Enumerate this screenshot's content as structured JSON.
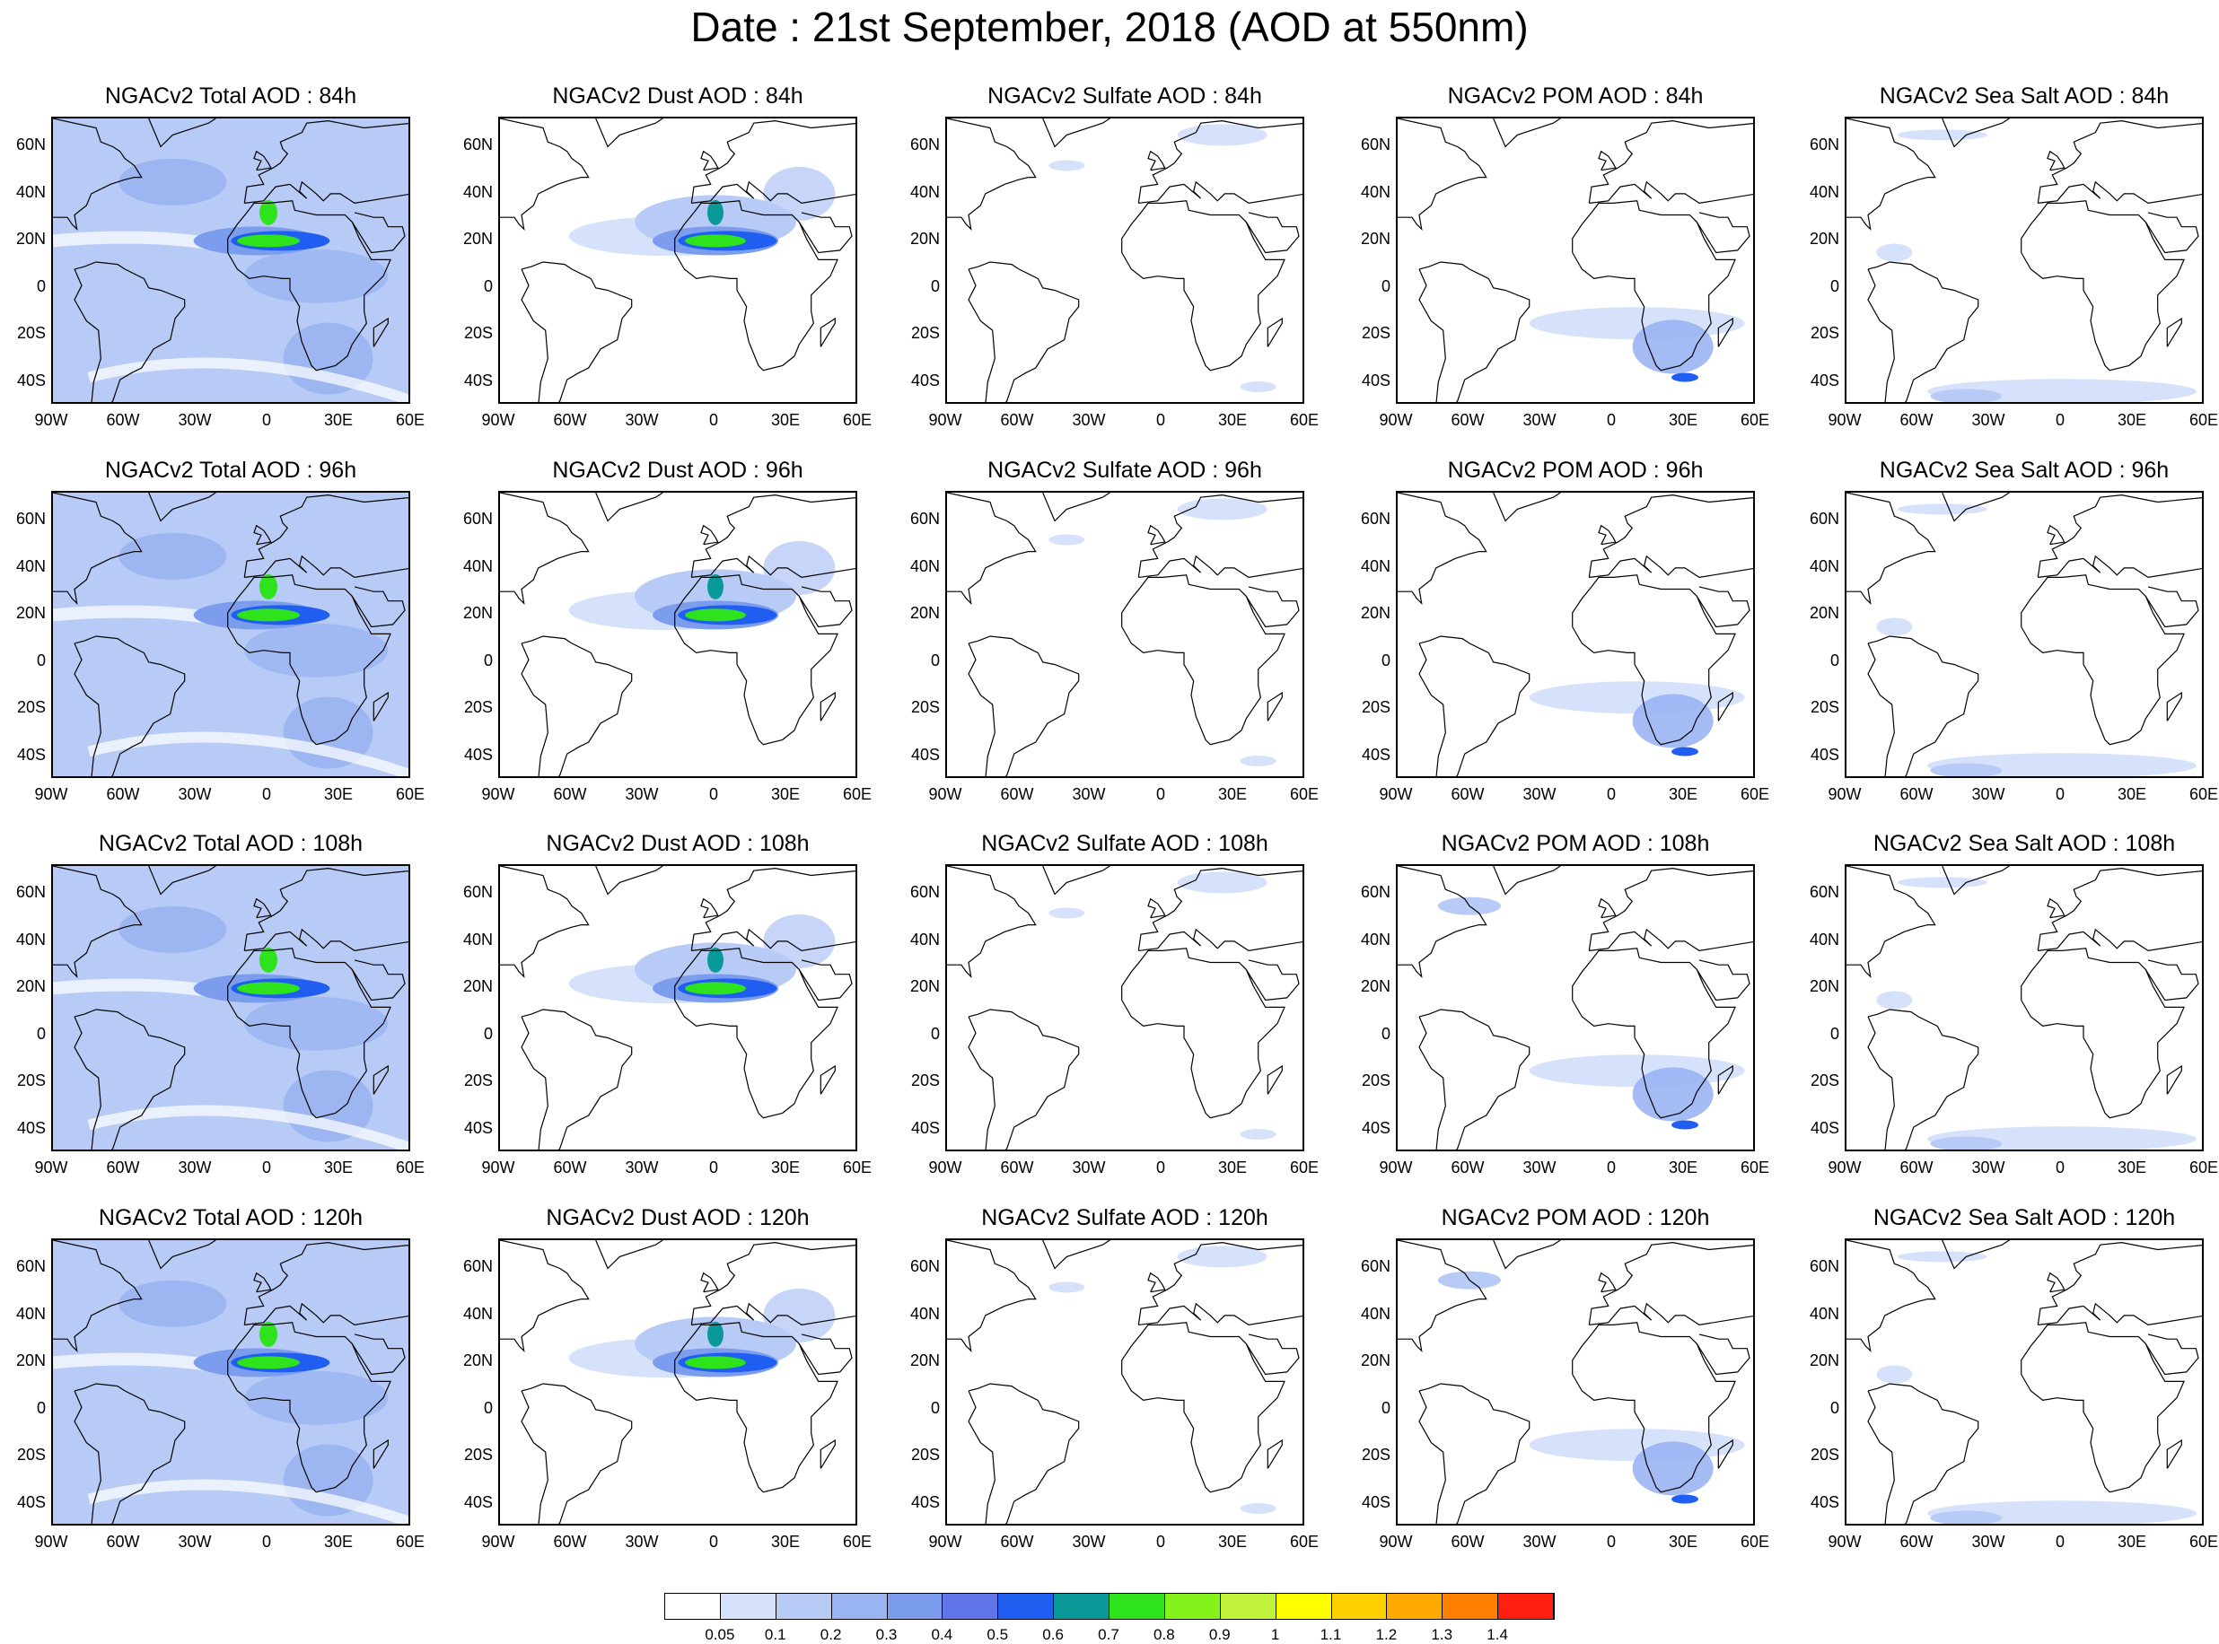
{
  "title": "Date : 21st September, 2018 (AOD at 550nm)",
  "lat_labels": [
    "60N",
    "40N",
    "20N",
    "0",
    "20S",
    "40S"
  ],
  "lon_labels": [
    "90W",
    "60W",
    "30W",
    "0",
    "30E",
    "60E"
  ],
  "panels": [
    [
      "NGACv2 Total AOD : 84h",
      "NGACv2 Dust AOD : 84h",
      "NGACv2 Sulfate AOD : 84h",
      "NGACv2 POM AOD : 84h",
      "NGACv2 Sea Salt AOD : 84h"
    ],
    [
      "NGACv2 Total AOD : 96h",
      "NGACv2 Dust AOD : 96h",
      "NGACv2 Sulfate AOD : 96h",
      "NGACv2 POM AOD : 96h",
      "NGACv2 Sea Salt AOD : 96h"
    ],
    [
      "NGACv2 Total AOD : 108h",
      "NGACv2 Dust AOD : 108h",
      "NGACv2 Sulfate AOD : 108h",
      "NGACv2 POM AOD : 108h",
      "NGACv2 Sea Salt AOD : 108h"
    ],
    [
      "NGACv2 Total AOD : 120h",
      "NGACv2 Dust AOD : 120h",
      "NGACv2 Sulfate AOD : 120h",
      "NGACv2 POM AOD : 120h",
      "NGACv2 Sea Salt  AOD : 120h"
    ]
  ],
  "colorbar": {
    "colors": [
      "#ffffff",
      "#d6e2fb",
      "#b8cbf6",
      "#9ab4f2",
      "#7c9cee",
      "#5f75e8",
      "#1f5ef0",
      "#0a9999",
      "#2ee21c",
      "#86f21c",
      "#c0f23c",
      "#ffff00",
      "#ffd000",
      "#ffaa00",
      "#ff7f00",
      "#ff1f0f"
    ],
    "labels": [
      "0.05",
      "0.1",
      "0.2",
      "0.3",
      "0.4",
      "0.5",
      "0.6",
      "0.7",
      "0.8",
      "0.9",
      "1",
      "1.1",
      "1.2",
      "1.3",
      "1.4"
    ]
  }
}
